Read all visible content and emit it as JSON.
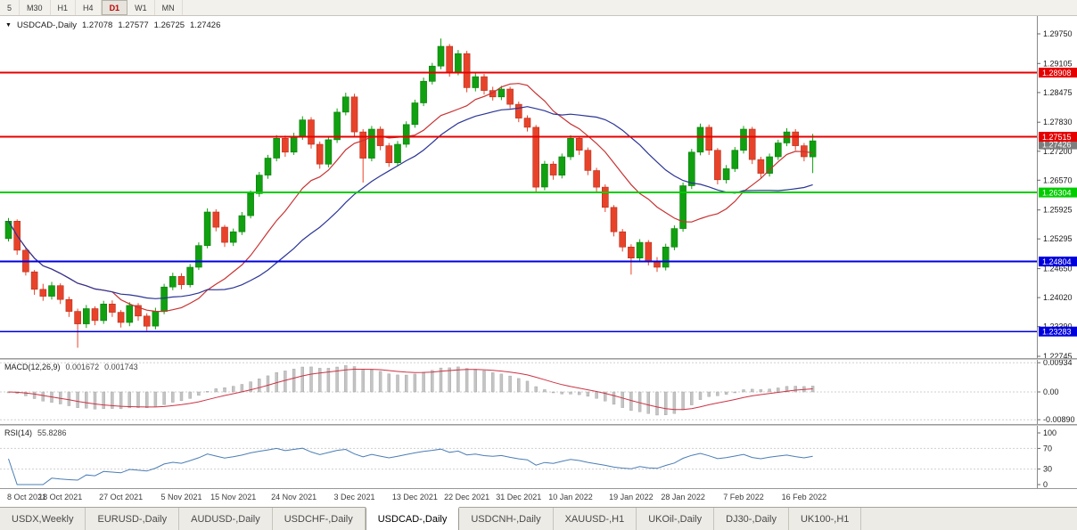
{
  "toolbar": {
    "timeframes": [
      {
        "label": "5",
        "active": false
      },
      {
        "label": "M30",
        "active": false
      },
      {
        "label": "H1",
        "active": false
      },
      {
        "label": "H4",
        "active": false
      },
      {
        "label": "D1",
        "active": true
      },
      {
        "label": "W1",
        "active": false
      },
      {
        "label": "MN",
        "active": false
      }
    ]
  },
  "icons": {
    "collapse": "▼"
  },
  "chart_header": {
    "symbol": "USDCAD-,Daily",
    "open": "1.27078",
    "high": "1.27577",
    "low": "1.26725",
    "close": "1.27426"
  },
  "main_axis": {
    "top_price": 1.2975,
    "bottom_price": 1.22745,
    "ticks": [
      "1.29750",
      "1.29105",
      "1.28475",
      "1.27830",
      "1.27200",
      "1.26570",
      "1.25925",
      "1.25295",
      "1.24650",
      "1.24020",
      "1.23390",
      "1.22745"
    ]
  },
  "levels": [
    {
      "price": 1.28908,
      "label": "1.28908",
      "color": "#e60000",
      "width": 1.6
    },
    {
      "price": 1.27515,
      "label": "1.27515",
      "color": "#e60000",
      "width": 1.6
    },
    {
      "price": 1.26304,
      "label": "1.26304",
      "color": "#00cc00",
      "width": 2.2
    },
    {
      "price": 1.24804,
      "label": "1.24804",
      "color": "#0000dd",
      "width": 1.8
    },
    {
      "price": 1.23283,
      "label": "1.23283",
      "color": "#0000dd",
      "width": 1.8
    }
  ],
  "current_price": {
    "value": 1.27426,
    "label": "1.27426",
    "color": "#7d7d7d"
  },
  "colors": {
    "up": "#10a010",
    "up_border": "#0a7d0a",
    "down": "#e8432a",
    "down_border": "#b5301c",
    "ma_fast": "#c83232",
    "ma_slow": "#2b3596",
    "macd_hist": "#c4c4c4",
    "macd_signal": "#cc3344",
    "rsi": "#4a7db5"
  },
  "chart_data": {
    "type": "candlestick",
    "symbol": "USDCAD-",
    "timeframe": "Daily",
    "candles": [
      [
        1.253,
        1.2575,
        1.2524,
        1.2568
      ],
      [
        1.2568,
        1.2572,
        1.2495,
        1.2505
      ],
      [
        1.2505,
        1.251,
        1.245,
        1.2458
      ],
      [
        1.2458,
        1.2462,
        1.2408,
        1.242
      ],
      [
        1.242,
        1.2432,
        1.2395,
        1.2405
      ],
      [
        1.2405,
        1.2436,
        1.2398,
        1.2428
      ],
      [
        1.2428,
        1.2433,
        1.2388,
        1.2398
      ],
      [
        1.2398,
        1.2404,
        1.236,
        1.2372
      ],
      [
        1.2372,
        1.2378,
        1.2293,
        1.2345
      ],
      [
        1.2345,
        1.2386,
        1.2336,
        1.2378
      ],
      [
        1.2378,
        1.2383,
        1.2342,
        1.2352
      ],
      [
        1.2352,
        1.2395,
        1.2345,
        1.2388
      ],
      [
        1.2388,
        1.2396,
        1.236,
        1.237
      ],
      [
        1.237,
        1.2375,
        1.2337,
        1.2348
      ],
      [
        1.2348,
        1.2392,
        1.234,
        1.2385
      ],
      [
        1.2385,
        1.239,
        1.2352,
        1.2362
      ],
      [
        1.2362,
        1.2368,
        1.233,
        1.234
      ],
      [
        1.234,
        1.238,
        1.2333,
        1.2372
      ],
      [
        1.2372,
        1.2432,
        1.2366,
        1.2425
      ],
      [
        1.2425,
        1.2456,
        1.2418,
        1.2448
      ],
      [
        1.2448,
        1.2455,
        1.242,
        1.243
      ],
      [
        1.243,
        1.2475,
        1.2424,
        1.2468
      ],
      [
        1.2468,
        1.2522,
        1.2462,
        1.2515
      ],
      [
        1.2515,
        1.2596,
        1.2509,
        1.2588
      ],
      [
        1.2588,
        1.2594,
        1.2546,
        1.2555
      ],
      [
        1.2555,
        1.256,
        1.2512,
        1.2522
      ],
      [
        1.2522,
        1.2552,
        1.2514,
        1.2545
      ],
      [
        1.2545,
        1.2588,
        1.2538,
        1.258
      ],
      [
        1.258,
        1.2635,
        1.2574,
        1.2628
      ],
      [
        1.2628,
        1.2675,
        1.2621,
        1.2668
      ],
      [
        1.2668,
        1.2712,
        1.266,
        1.2705
      ],
      [
        1.2705,
        1.2755,
        1.2698,
        1.2748
      ],
      [
        1.2748,
        1.2754,
        1.2708,
        1.2718
      ],
      [
        1.2718,
        1.276,
        1.2712,
        1.2752
      ],
      [
        1.2752,
        1.2796,
        1.2745,
        1.2788
      ],
      [
        1.2788,
        1.2794,
        1.2726,
        1.2735
      ],
      [
        1.2735,
        1.2741,
        1.2682,
        1.2692
      ],
      [
        1.2692,
        1.2752,
        1.2685,
        1.2745
      ],
      [
        1.2745,
        1.2813,
        1.2738,
        1.2805
      ],
      [
        1.2805,
        1.2847,
        1.2798,
        1.2838
      ],
      [
        1.2838,
        1.2845,
        1.2752,
        1.2762
      ],
      [
        1.2762,
        1.2768,
        1.2652,
        1.2705
      ],
      [
        1.2705,
        1.2775,
        1.2698,
        1.2768
      ],
      [
        1.2768,
        1.2774,
        1.2722,
        1.2732
      ],
      [
        1.2732,
        1.2738,
        1.2686,
        1.2695
      ],
      [
        1.2695,
        1.2742,
        1.2688,
        1.2735
      ],
      [
        1.2735,
        1.2785,
        1.2728,
        1.2778
      ],
      [
        1.2778,
        1.2832,
        1.2771,
        1.2825
      ],
      [
        1.2825,
        1.288,
        1.2818,
        1.2872
      ],
      [
        1.2872,
        1.2912,
        1.2865,
        1.2905
      ],
      [
        1.2905,
        1.2965,
        1.2898,
        1.2948
      ],
      [
        1.2948,
        1.2953,
        1.2882,
        1.2892
      ],
      [
        1.2892,
        1.294,
        1.2885,
        1.2932
      ],
      [
        1.2932,
        1.2938,
        1.2848,
        1.2858
      ],
      [
        1.2858,
        1.289,
        1.285,
        1.2882
      ],
      [
        1.2882,
        1.2888,
        1.2843,
        1.2852
      ],
      [
        1.2852,
        1.286,
        1.283,
        1.2838
      ],
      [
        1.2838,
        1.2862,
        1.2831,
        1.2855
      ],
      [
        1.2855,
        1.286,
        1.2813,
        1.2822
      ],
      [
        1.2822,
        1.2828,
        1.2783,
        1.2792
      ],
      [
        1.2792,
        1.2798,
        1.2763,
        1.2772
      ],
      [
        1.2772,
        1.2777,
        1.2632,
        1.2642
      ],
      [
        1.2642,
        1.2699,
        1.2635,
        1.2692
      ],
      [
        1.2692,
        1.2698,
        1.2658,
        1.2668
      ],
      [
        1.2668,
        1.2715,
        1.2661,
        1.2708
      ],
      [
        1.2708,
        1.2755,
        1.2701,
        1.2748
      ],
      [
        1.2748,
        1.2753,
        1.2712,
        1.2722
      ],
      [
        1.2722,
        1.2728,
        1.2668,
        1.2678
      ],
      [
        1.2678,
        1.2684,
        1.2632,
        1.2642
      ],
      [
        1.2642,
        1.2648,
        1.2588,
        1.2598
      ],
      [
        1.2598,
        1.2603,
        1.2535,
        1.2545
      ],
      [
        1.2545,
        1.2551,
        1.2502,
        1.2512
      ],
      [
        1.2512,
        1.2518,
        1.2452,
        1.2488
      ],
      [
        1.2488,
        1.2529,
        1.248,
        1.2522
      ],
      [
        1.2522,
        1.2527,
        1.2472,
        1.2482
      ],
      [
        1.2482,
        1.249,
        1.2458,
        1.2468
      ],
      [
        1.2468,
        1.2519,
        1.2461,
        1.2512
      ],
      [
        1.2512,
        1.2559,
        1.2505,
        1.2552
      ],
      [
        1.2552,
        1.2652,
        1.2545,
        1.2645
      ],
      [
        1.2645,
        1.2725,
        1.2638,
        1.2718
      ],
      [
        1.2718,
        1.278,
        1.2711,
        1.2772
      ],
      [
        1.2772,
        1.2778,
        1.2712,
        1.2722
      ],
      [
        1.2722,
        1.2727,
        1.2648,
        1.2658
      ],
      [
        1.2658,
        1.269,
        1.265,
        1.2682
      ],
      [
        1.2682,
        1.2729,
        1.2675,
        1.2722
      ],
      [
        1.2722,
        1.2775,
        1.2715,
        1.2768
      ],
      [
        1.2768,
        1.2773,
        1.2692,
        1.2702
      ],
      [
        1.2702,
        1.2708,
        1.2662,
        1.2672
      ],
      [
        1.2672,
        1.2715,
        1.2665,
        1.2708
      ],
      [
        1.2708,
        1.2745,
        1.2701,
        1.2738
      ],
      [
        1.2738,
        1.277,
        1.2731,
        1.2762
      ],
      [
        1.2762,
        1.2768,
        1.2722,
        1.2732
      ],
      [
        1.2732,
        1.2738,
        1.2698,
        1.2708
      ],
      [
        1.27078,
        1.27577,
        1.26725,
        1.27426
      ]
    ],
    "overlays": [
      {
        "name": "ma-fast",
        "type": "sma",
        "period": 13
      },
      {
        "name": "ma-slow",
        "type": "sma",
        "period": 24
      }
    ],
    "x_labels": [
      {
        "t": "8 Oct 2021",
        "i": 0
      },
      {
        "t": "18 Oct 2021",
        "i": 6
      },
      {
        "t": "27 Oct 2021",
        "i": 13
      },
      {
        "t": "5 Nov 2021",
        "i": 20
      },
      {
        "t": "15 Nov 2021",
        "i": 26
      },
      {
        "t": "24 Nov 2021",
        "i": 33
      },
      {
        "t": "3 Dec 2021",
        "i": 40
      },
      {
        "t": "13 Dec 2021",
        "i": 47
      },
      {
        "t": "22 Dec 2021",
        "i": 53
      },
      {
        "t": "31 Dec 2021",
        "i": 59
      },
      {
        "t": "10 Jan 2022",
        "i": 65
      },
      {
        "t": "19 Jan 2022",
        "i": 72
      },
      {
        "t": "28 Jan 2022",
        "i": 78
      },
      {
        "t": "7 Feb 2022",
        "i": 85
      },
      {
        "t": "16 Feb 2022",
        "i": 92
      }
    ],
    "macd": {
      "label": "MACD(12,26,9)",
      "main_value": "0.001672",
      "signal_value": "0.001743",
      "params": [
        12,
        26,
        9
      ],
      "axis": [
        "0.00934",
        "0.00",
        "-0.00890"
      ]
    },
    "rsi": {
      "label": "RSI(14)",
      "value": "55.8286",
      "period": 14,
      "axis": [
        "100",
        "70",
        "30",
        "0"
      ],
      "guides": [
        70,
        30
      ]
    }
  },
  "tabs": [
    {
      "label": "USDX,Weekly",
      "active": false
    },
    {
      "label": "EURUSD-,Daily",
      "active": false
    },
    {
      "label": "AUDUSD-,Daily",
      "active": false
    },
    {
      "label": "USDCHF-,Daily",
      "active": false
    },
    {
      "label": "USDCAD-,Daily",
      "active": true
    },
    {
      "label": "USDCNH-,Daily",
      "active": false
    },
    {
      "label": "XAUUSD-,H1",
      "active": false
    },
    {
      "label": "UKOil-,Daily",
      "active": false
    },
    {
      "label": "DJ30-,Daily",
      "active": false
    },
    {
      "label": "UK100-,H1",
      "active": false
    }
  ]
}
